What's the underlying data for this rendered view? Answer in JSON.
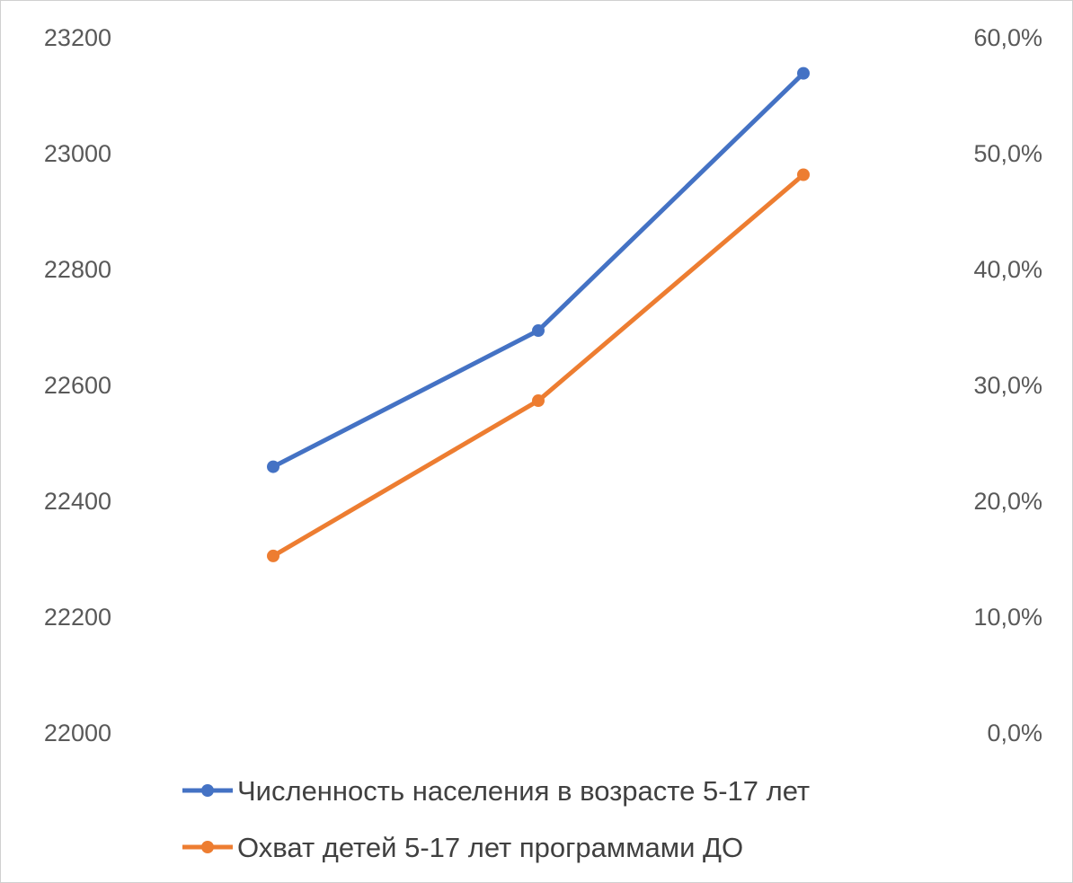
{
  "chart_data": {
    "type": "line",
    "title": "",
    "xlabel": "",
    "x": [
      "",
      "",
      ""
    ],
    "y_left": {
      "ticks": [
        "23200",
        "23000",
        "22800",
        "22600",
        "22400",
        "22200",
        "22000"
      ],
      "range": [
        22000,
        23200
      ]
    },
    "y_right": {
      "ticks": [
        "60,0%",
        "50,0%",
        "40,0%",
        "30,0%",
        "20,0%",
        "10,0%",
        "0,0%"
      ],
      "range": [
        0,
        60
      ]
    },
    "series": [
      {
        "name": "Численность населения в возрасте 5-17 лет",
        "axis": "left",
        "color": "#4472C4",
        "values": [
          22458,
          22693,
          23137
        ]
      },
      {
        "name": "Охват детей 5-17 лет программами ДО",
        "axis": "right",
        "color": "#ED7D31",
        "values": [
          15.2,
          28.6,
          48.1
        ]
      }
    ],
    "grid": false,
    "legend_position": "bottom"
  }
}
